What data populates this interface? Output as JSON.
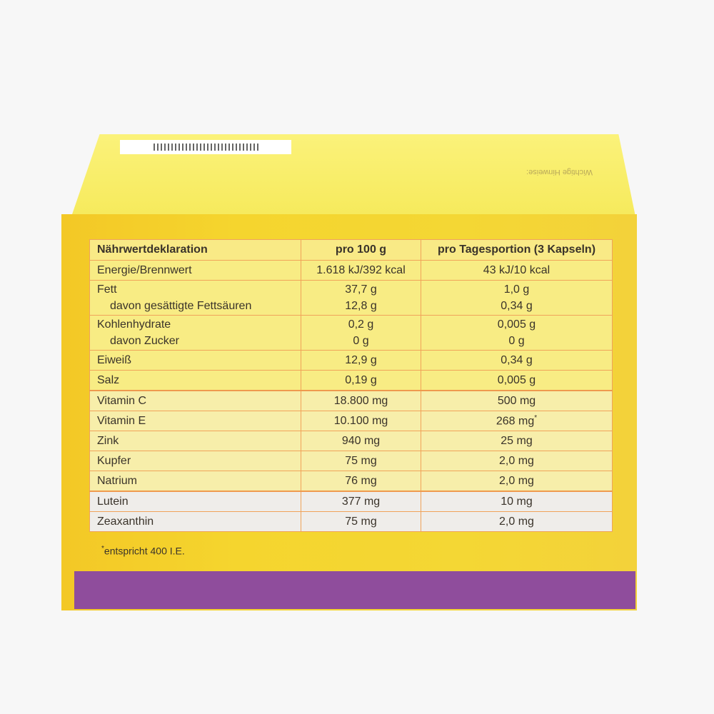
{
  "lid": {
    "note_heading": "Wichtige Hinweise:"
  },
  "table": {
    "headers": [
      "Nährwertdeklaration",
      "pro 100 g",
      "pro Tagesportion (3 Kapseln)"
    ],
    "rows": [
      {
        "label": "Energie/Brennwert",
        "per100": "1.618 kJ/392 kcal",
        "perDay": "43 kJ/10 kcal"
      },
      {
        "label": "Fett",
        "sublabel": "davon gesättigte Fettsäuren",
        "per100": "37,7 g",
        "per100_sub": "12,8 g",
        "perDay": "1,0 g",
        "perDay_sub": "0,34 g"
      },
      {
        "label": "Kohlenhydrate",
        "sublabel": "davon Zucker",
        "per100": "0,2 g",
        "per100_sub": "0 g",
        "perDay": "0,005 g",
        "perDay_sub": "0 g"
      },
      {
        "label": "Eiweiß",
        "per100": "12,9 g",
        "perDay": "0,34 g"
      },
      {
        "label": "Salz",
        "per100": "0,19 g",
        "perDay": "0,005 g"
      },
      {
        "label": "Vitamin C",
        "per100": "18.800 mg",
        "perDay": "500 mg"
      },
      {
        "label": "Vitamin E",
        "per100": "10.100 mg",
        "perDay": "268 mg",
        "perDay_mark": "*"
      },
      {
        "label": "Zink",
        "per100": "940 mg",
        "perDay": "25 mg"
      },
      {
        "label": "Kupfer",
        "per100": "75 mg",
        "perDay": "2,0 mg"
      },
      {
        "label": "Natrium",
        "per100": "76 mg",
        "perDay": "2,0 mg"
      },
      {
        "label": "Lutein",
        "per100": "377 mg",
        "perDay": "10 mg"
      },
      {
        "label": "Zeaxanthin",
        "per100": "75 mg",
        "perDay": "2,0 mg"
      }
    ],
    "footnote_mark": "*",
    "footnote": "entspricht 400 I.E."
  },
  "colors": {
    "box_yellow": "#f4d430",
    "table_header": "#f9ea86",
    "vitamin_rows": "#f7eeaa",
    "carotenoid_rows": "#efedea",
    "border_orange": "#f0a35a",
    "purple_band": "#8f4d9c"
  }
}
